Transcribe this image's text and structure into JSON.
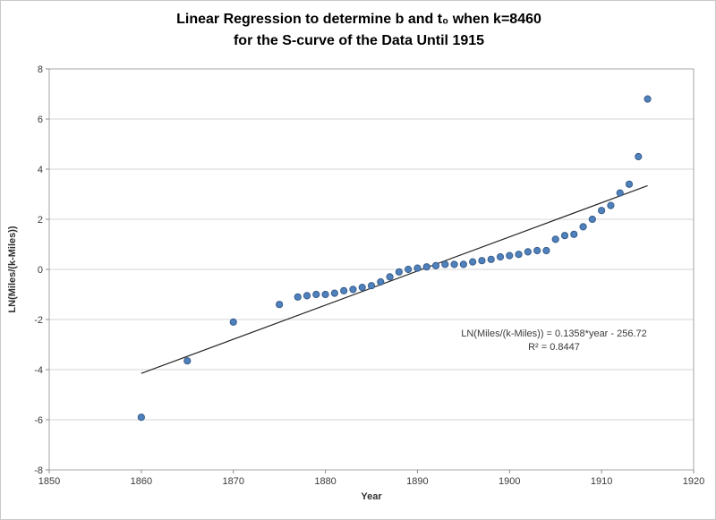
{
  "chart_data": {
    "type": "scatter",
    "title_line1": "Linear Regression to determine b and t₀ when k=8460",
    "title_line2": "for the S-curve of the Data Until 1915",
    "xlabel": "Year",
    "ylabel": "LN(Miles/(k-Miles))",
    "xlim": [
      1850,
      1920
    ],
    "ylim": [
      -8,
      8
    ],
    "x_ticks": [
      1850,
      1860,
      1870,
      1880,
      1890,
      1900,
      1910,
      1920
    ],
    "y_ticks": [
      8,
      6,
      4,
      2,
      0,
      -2,
      -4,
      -6,
      -8
    ],
    "grid": "horizontal-only",
    "legend": "none",
    "points": [
      [
        1860,
        -5.9
      ],
      [
        1865,
        -3.65
      ],
      [
        1870,
        -2.1
      ],
      [
        1875,
        -1.4
      ],
      [
        1877,
        -1.1
      ],
      [
        1878,
        -1.05
      ],
      [
        1879,
        -1.0
      ],
      [
        1880,
        -1.0
      ],
      [
        1881,
        -0.95
      ],
      [
        1882,
        -0.85
      ],
      [
        1883,
        -0.8
      ],
      [
        1884,
        -0.72
      ],
      [
        1885,
        -0.65
      ],
      [
        1886,
        -0.5
      ],
      [
        1887,
        -0.3
      ],
      [
        1888,
        -0.1
      ],
      [
        1889,
        0.0
      ],
      [
        1890,
        0.05
      ],
      [
        1891,
        0.1
      ],
      [
        1892,
        0.15
      ],
      [
        1893,
        0.2
      ],
      [
        1894,
        0.2
      ],
      [
        1895,
        0.2
      ],
      [
        1896,
        0.3
      ],
      [
        1897,
        0.35
      ],
      [
        1898,
        0.4
      ],
      [
        1899,
        0.5
      ],
      [
        1900,
        0.55
      ],
      [
        1901,
        0.6
      ],
      [
        1902,
        0.7
      ],
      [
        1903,
        0.75
      ],
      [
        1904,
        0.75
      ],
      [
        1905,
        1.2
      ],
      [
        1906,
        1.35
      ],
      [
        1907,
        1.4
      ],
      [
        1908,
        1.7
      ],
      [
        1909,
        2.0
      ],
      [
        1910,
        2.35
      ],
      [
        1911,
        2.55
      ],
      [
        1912,
        3.05
      ],
      [
        1913,
        3.4
      ],
      [
        1914,
        4.5
      ],
      [
        1915,
        6.8
      ]
    ],
    "trendline": {
      "x1": 1860,
      "y1": -4.15,
      "x2": 1915,
      "y2": 3.34
    },
    "annotation": {
      "line1": "LN(Miles/(k-Miles)) = 0.1358*year - 256.72",
      "line2": "R² = 0.8447"
    },
    "colors": {
      "point_fill": "#4f81bd",
      "point_stroke": "#385d8a",
      "trend_line": "#262626",
      "gridline": "#d6d6d6",
      "plot_border": "#a6a6a6",
      "tick": "#8c8c8c",
      "text": "#3a3a3a"
    }
  }
}
